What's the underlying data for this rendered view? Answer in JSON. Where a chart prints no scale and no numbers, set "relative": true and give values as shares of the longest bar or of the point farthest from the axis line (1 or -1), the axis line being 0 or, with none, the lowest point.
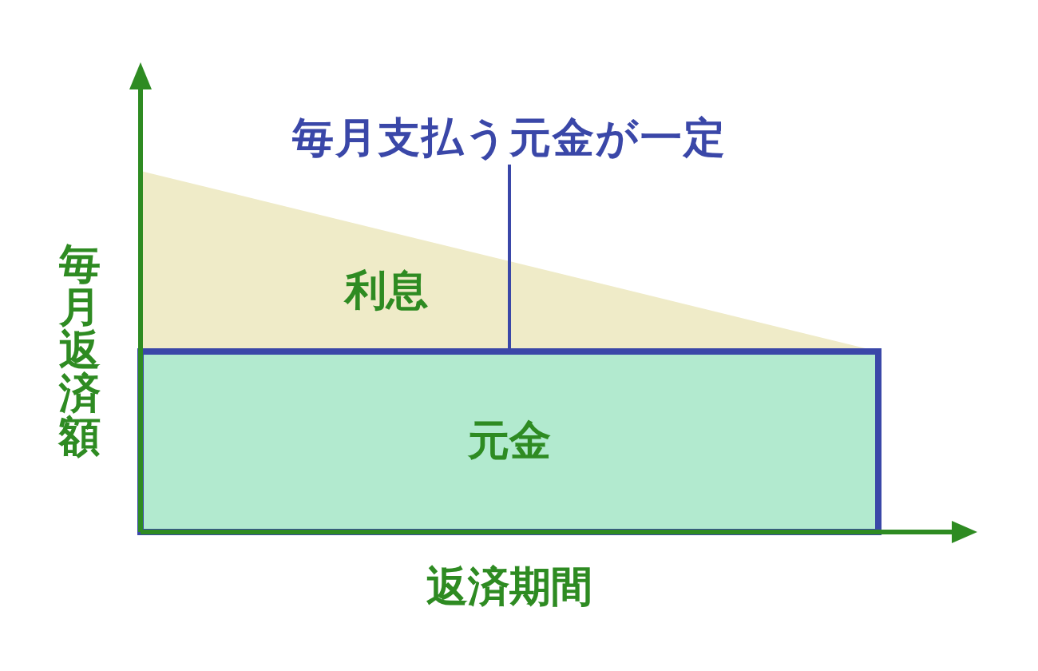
{
  "chart_data": {
    "type": "area",
    "relative": true,
    "stacked": true,
    "xlabel": "返済期間",
    "ylabel": "毎月返済額",
    "categories": [
      null,
      null
    ],
    "series": [
      {
        "name": "元金",
        "type": "area",
        "color": "#b2eacf",
        "values": [
          0.5,
          0.5
        ]
      },
      {
        "name": "利息",
        "type": "area",
        "color": "#efebc8",
        "values": [
          0.5,
          0
        ]
      }
    ],
    "ref_lines": [
      {
        "axis": "y",
        "value": 0.5,
        "label": "毎月支払う元金が一定",
        "color": "#3a47a8"
      }
    ]
  }
}
